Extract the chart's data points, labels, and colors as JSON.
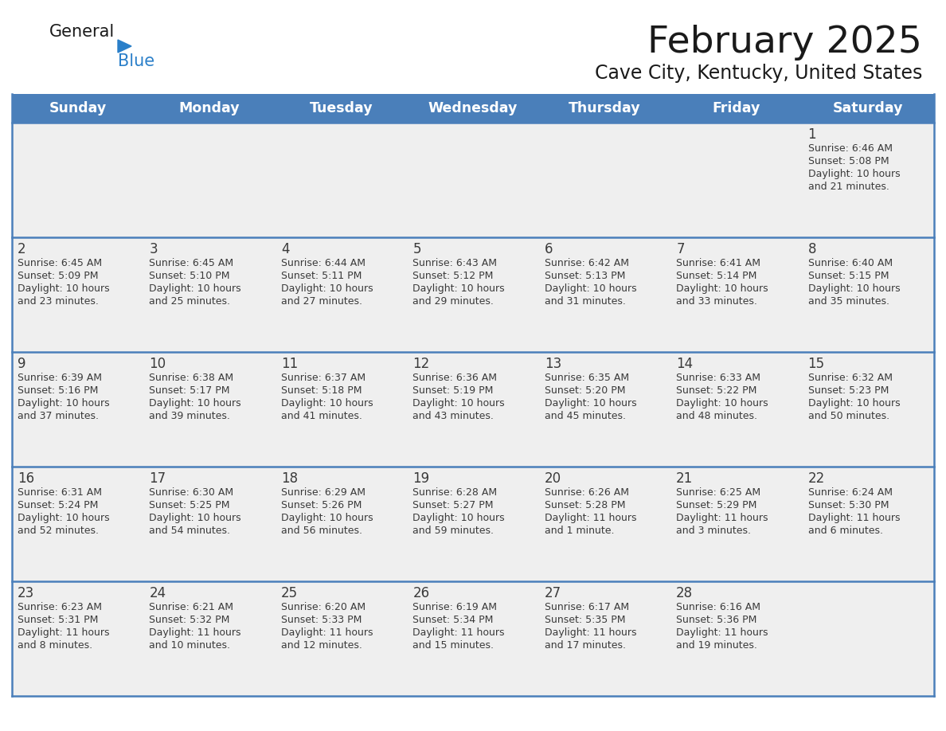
{
  "title": "February 2025",
  "subtitle": "Cave City, Kentucky, United States",
  "days_of_week": [
    "Sunday",
    "Monday",
    "Tuesday",
    "Wednesday",
    "Thursday",
    "Friday",
    "Saturday"
  ],
  "header_bg": "#4a7fba",
  "header_text": "#ffffff",
  "cell_bg": "#efefef",
  "day_num_color": "#3a3a3a",
  "info_text_color": "#3a3a3a",
  "border_color": "#4a7fba",
  "title_color": "#1a1a1a",
  "subtitle_color": "#1a1a1a",
  "logo_general_color": "#1a1a1a",
  "logo_blue_color": "#2a7fc9",
  "calendar_data": [
    [
      {
        "day": null,
        "sunrise": null,
        "sunset": null,
        "daylight": null
      },
      {
        "day": null,
        "sunrise": null,
        "sunset": null,
        "daylight": null
      },
      {
        "day": null,
        "sunrise": null,
        "sunset": null,
        "daylight": null
      },
      {
        "day": null,
        "sunrise": null,
        "sunset": null,
        "daylight": null
      },
      {
        "day": null,
        "sunrise": null,
        "sunset": null,
        "daylight": null
      },
      {
        "day": null,
        "sunrise": null,
        "sunset": null,
        "daylight": null
      },
      {
        "day": 1,
        "sunrise": "6:46 AM",
        "sunset": "5:08 PM",
        "daylight": "10 hours and 21 minutes."
      }
    ],
    [
      {
        "day": 2,
        "sunrise": "6:45 AM",
        "sunset": "5:09 PM",
        "daylight": "10 hours and 23 minutes."
      },
      {
        "day": 3,
        "sunrise": "6:45 AM",
        "sunset": "5:10 PM",
        "daylight": "10 hours and 25 minutes."
      },
      {
        "day": 4,
        "sunrise": "6:44 AM",
        "sunset": "5:11 PM",
        "daylight": "10 hours and 27 minutes."
      },
      {
        "day": 5,
        "sunrise": "6:43 AM",
        "sunset": "5:12 PM",
        "daylight": "10 hours and 29 minutes."
      },
      {
        "day": 6,
        "sunrise": "6:42 AM",
        "sunset": "5:13 PM",
        "daylight": "10 hours and 31 minutes."
      },
      {
        "day": 7,
        "sunrise": "6:41 AM",
        "sunset": "5:14 PM",
        "daylight": "10 hours and 33 minutes."
      },
      {
        "day": 8,
        "sunrise": "6:40 AM",
        "sunset": "5:15 PM",
        "daylight": "10 hours and 35 minutes."
      }
    ],
    [
      {
        "day": 9,
        "sunrise": "6:39 AM",
        "sunset": "5:16 PM",
        "daylight": "10 hours and 37 minutes."
      },
      {
        "day": 10,
        "sunrise": "6:38 AM",
        "sunset": "5:17 PM",
        "daylight": "10 hours and 39 minutes."
      },
      {
        "day": 11,
        "sunrise": "6:37 AM",
        "sunset": "5:18 PM",
        "daylight": "10 hours and 41 minutes."
      },
      {
        "day": 12,
        "sunrise": "6:36 AM",
        "sunset": "5:19 PM",
        "daylight": "10 hours and 43 minutes."
      },
      {
        "day": 13,
        "sunrise": "6:35 AM",
        "sunset": "5:20 PM",
        "daylight": "10 hours and 45 minutes."
      },
      {
        "day": 14,
        "sunrise": "6:33 AM",
        "sunset": "5:22 PM",
        "daylight": "10 hours and 48 minutes."
      },
      {
        "day": 15,
        "sunrise": "6:32 AM",
        "sunset": "5:23 PM",
        "daylight": "10 hours and 50 minutes."
      }
    ],
    [
      {
        "day": 16,
        "sunrise": "6:31 AM",
        "sunset": "5:24 PM",
        "daylight": "10 hours and 52 minutes."
      },
      {
        "day": 17,
        "sunrise": "6:30 AM",
        "sunset": "5:25 PM",
        "daylight": "10 hours and 54 minutes."
      },
      {
        "day": 18,
        "sunrise": "6:29 AM",
        "sunset": "5:26 PM",
        "daylight": "10 hours and 56 minutes."
      },
      {
        "day": 19,
        "sunrise": "6:28 AM",
        "sunset": "5:27 PM",
        "daylight": "10 hours and 59 minutes."
      },
      {
        "day": 20,
        "sunrise": "6:26 AM",
        "sunset": "5:28 PM",
        "daylight": "11 hours and 1 minute."
      },
      {
        "day": 21,
        "sunrise": "6:25 AM",
        "sunset": "5:29 PM",
        "daylight": "11 hours and 3 minutes."
      },
      {
        "day": 22,
        "sunrise": "6:24 AM",
        "sunset": "5:30 PM",
        "daylight": "11 hours and 6 minutes."
      }
    ],
    [
      {
        "day": 23,
        "sunrise": "6:23 AM",
        "sunset": "5:31 PM",
        "daylight": "11 hours and 8 minutes."
      },
      {
        "day": 24,
        "sunrise": "6:21 AM",
        "sunset": "5:32 PM",
        "daylight": "11 hours and 10 minutes."
      },
      {
        "day": 25,
        "sunrise": "6:20 AM",
        "sunset": "5:33 PM",
        "daylight": "11 hours and 12 minutes."
      },
      {
        "day": 26,
        "sunrise": "6:19 AM",
        "sunset": "5:34 PM",
        "daylight": "11 hours and 15 minutes."
      },
      {
        "day": 27,
        "sunrise": "6:17 AM",
        "sunset": "5:35 PM",
        "daylight": "11 hours and 17 minutes."
      },
      {
        "day": 28,
        "sunrise": "6:16 AM",
        "sunset": "5:36 PM",
        "daylight": "11 hours and 19 minutes."
      },
      {
        "day": null,
        "sunrise": null,
        "sunset": null,
        "daylight": null
      }
    ]
  ]
}
